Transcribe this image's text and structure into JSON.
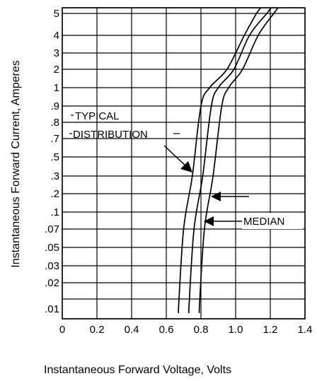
{
  "chart_data": {
    "type": "line",
    "title": "",
    "xlabel": "Instantaneous Forward Voltage, Volts",
    "ylabel": "Instantaneous Forward Current, Amperes",
    "xlim": [
      0,
      1.4
    ],
    "x_ticks": [
      "0",
      "0.2",
      "0.4",
      "0.6",
      "0.8",
      "1.0",
      "1.2",
      "1.4"
    ],
    "y_ticks": [
      "5",
      "4",
      "3",
      "2",
      "1",
      ".9",
      ".8",
      ".7",
      ".5",
      ".3",
      ".2",
      ".1",
      ".07",
      ".05",
      ".03",
      ".02",
      ".01"
    ],
    "grid": true,
    "series": [
      {
        "x": [
          0.67,
          0.7,
          0.75,
          0.8,
          0.85,
          0.95,
          1.05,
          1.12
        ],
        "y": [
          ".01",
          ".07",
          ".3",
          ".9",
          "1",
          "2",
          "4",
          "5"
        ]
      },
      {
        "x": [
          0.73,
          0.76,
          0.81,
          0.86,
          0.9,
          0.99,
          1.08,
          1.18
        ],
        "y": [
          ".01",
          ".07",
          ".3",
          ".9",
          "1",
          "2",
          "4",
          "5"
        ]
      },
      {
        "x": [
          0.79,
          0.82,
          0.87,
          0.92,
          0.96,
          1.04,
          1.13,
          1.22
        ],
        "y": [
          ".01",
          ".07",
          ".3",
          ".9",
          "1",
          "2",
          "4",
          "5"
        ]
      }
    ],
    "annotations": [
      {
        "text": "TYPICAL",
        "target_series": 0
      },
      {
        "text": "DISTRIBUTION",
        "target_series": 0
      },
      {
        "text": "MEDIAN",
        "target_series": 1
      }
    ]
  }
}
